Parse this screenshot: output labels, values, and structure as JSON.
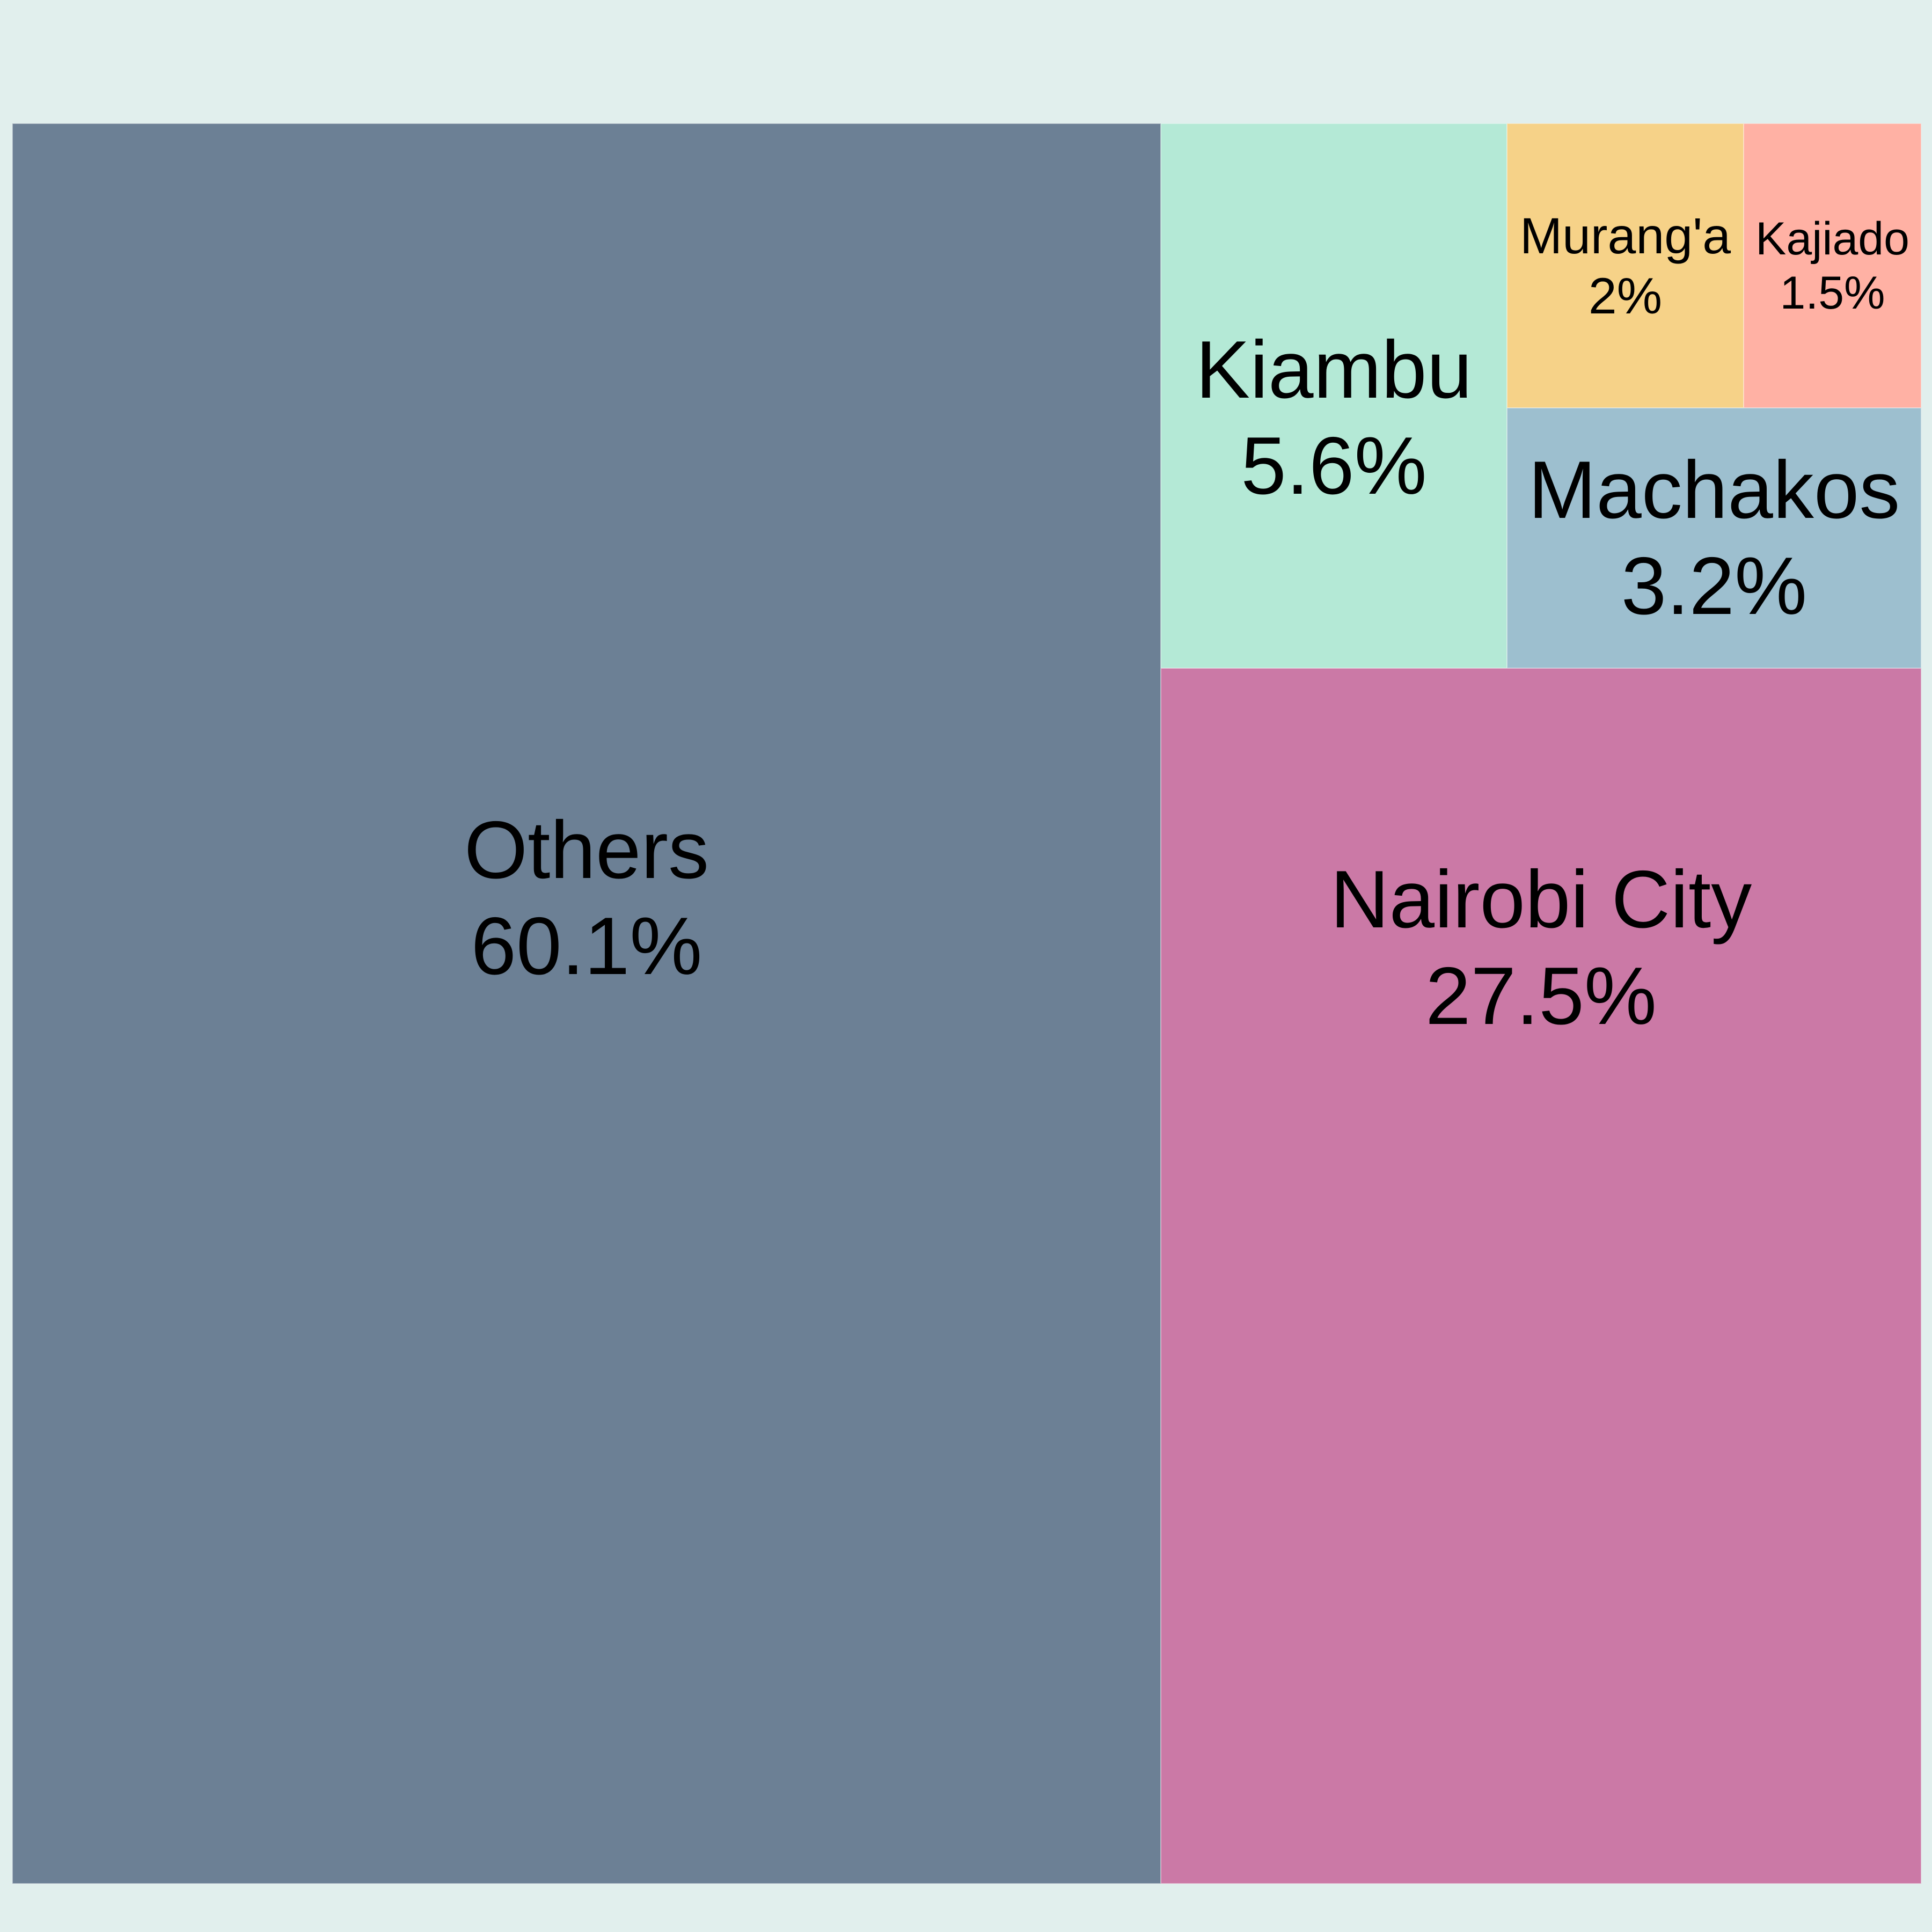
{
  "chart_data": {
    "type": "treemap",
    "tiles": [
      {
        "label": "Others",
        "percent_label": "60.1%",
        "value": 60.1,
        "color": "#6c8095"
      },
      {
        "label": "Nairobi City",
        "percent_label": "27.5%",
        "value": 27.5,
        "color": "#cb79a6"
      },
      {
        "label": "Kiambu",
        "percent_label": "5.6%",
        "value": 5.6,
        "color": "#b4e9d6"
      },
      {
        "label": "Machakos",
        "percent_label": "3.2%",
        "value": 3.2,
        "color": "#9dbfcf"
      },
      {
        "label": "Murang'a",
        "percent_label": "2%",
        "value": 2.0,
        "color": "#f6d288"
      },
      {
        "label": "Kajiado",
        "percent_label": "1.5%",
        "value": 1.5,
        "color": "#ffb1a4"
      }
    ]
  }
}
